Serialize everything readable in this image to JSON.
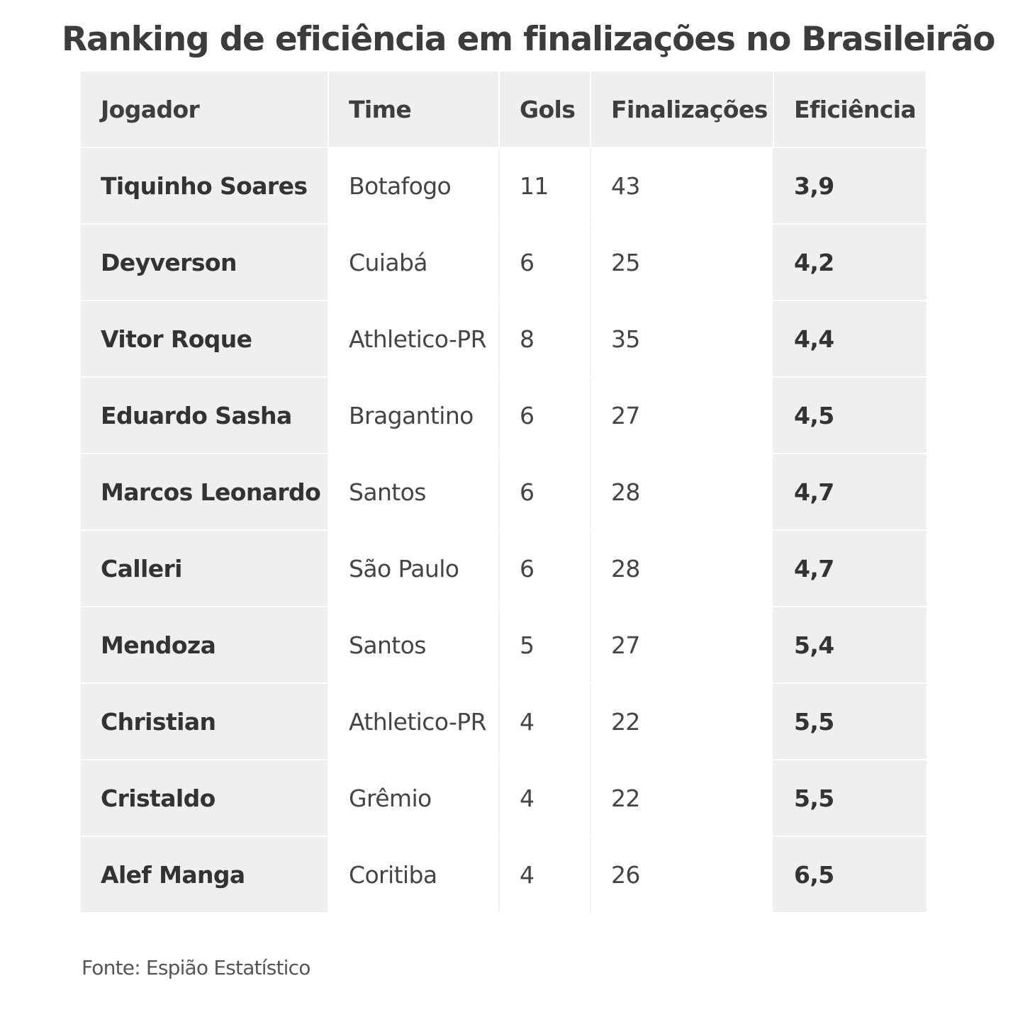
{
  "title": "Ranking de eficiência em finalizações no Brasileirão",
  "table": {
    "headers": {
      "player": "Jogador",
      "team": "Time",
      "goals": "Gols",
      "shots": "Finalizações",
      "efficiency": "Eficiência"
    },
    "rows": [
      {
        "player": "Tiquinho Soares",
        "team": "Botafogo",
        "goals": "11",
        "shots": "43",
        "efficiency": "3,9"
      },
      {
        "player": "Deyverson",
        "team": "Cuiabá",
        "goals": "6",
        "shots": "25",
        "efficiency": "4,2"
      },
      {
        "player": "Vitor Roque",
        "team": "Athletico-PR",
        "goals": "8",
        "shots": "35",
        "efficiency": "4,4"
      },
      {
        "player": "Eduardo Sasha",
        "team": "Bragantino",
        "goals": "6",
        "shots": "27",
        "efficiency": "4,5"
      },
      {
        "player": "Marcos Leonardo",
        "team": "Santos",
        "goals": "6",
        "shots": "28",
        "efficiency": "4,7"
      },
      {
        "player": "Calleri",
        "team": "São Paulo",
        "goals": "6",
        "shots": "28",
        "efficiency": "4,7"
      },
      {
        "player": "Mendoza",
        "team": "Santos",
        "goals": "5",
        "shots": "27",
        "efficiency": "5,4"
      },
      {
        "player": "Christian",
        "team": "Athletico-PR",
        "goals": "4",
        "shots": "22",
        "efficiency": "5,5"
      },
      {
        "player": "Cristaldo",
        "team": "Grêmio",
        "goals": "4",
        "shots": "22",
        "efficiency": "5,5"
      },
      {
        "player": "Alef Manga",
        "team": "Coritiba",
        "goals": "4",
        "shots": "26",
        "efficiency": "6,5"
      }
    ]
  },
  "source": "Fonte: Espião Estatístico"
}
